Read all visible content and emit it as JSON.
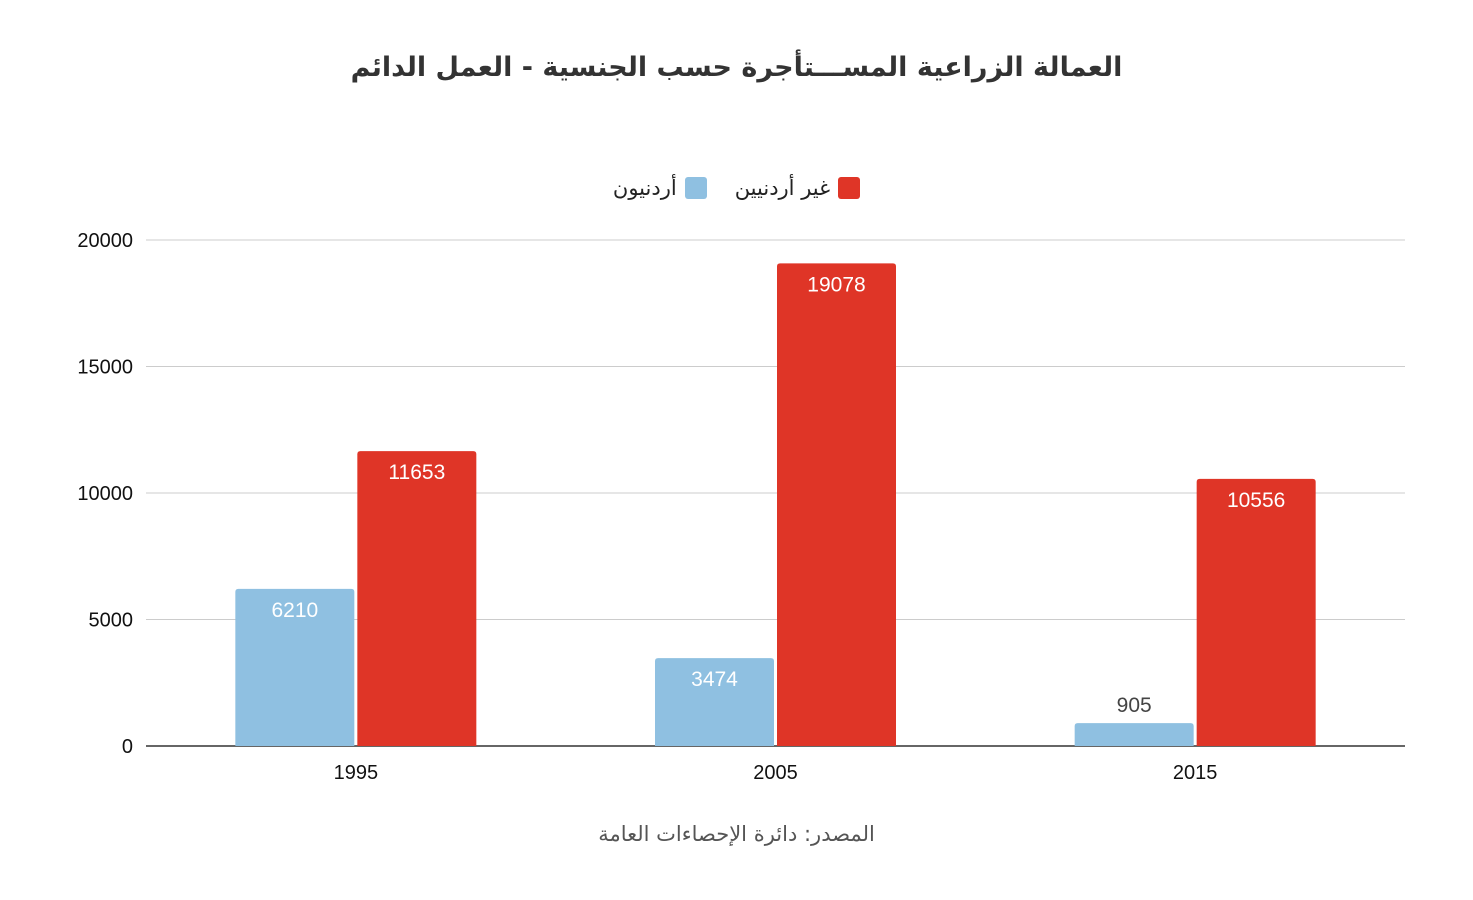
{
  "chart_data": {
    "type": "bar",
    "title": "العمالة الزراعية المســـتأجرة حسب الجنسية - العمل الدائم",
    "categories": [
      "1995",
      "2005",
      "2015"
    ],
    "series": [
      {
        "name": "أردنيون",
        "color": "#8fc0e1",
        "values": [
          6210,
          3474,
          905
        ]
      },
      {
        "name": "غير أردنيين",
        "color": "#df3527",
        "values": [
          11653,
          19078,
          10556
        ]
      }
    ],
    "ylim": [
      0,
      20000
    ],
    "yticks": [
      "0",
      "5000",
      "10000",
      "15000",
      "20000"
    ],
    "grid": true,
    "legend_position": "top"
  },
  "source_note": "المصدر: دائرة الإحصاءات العامة"
}
